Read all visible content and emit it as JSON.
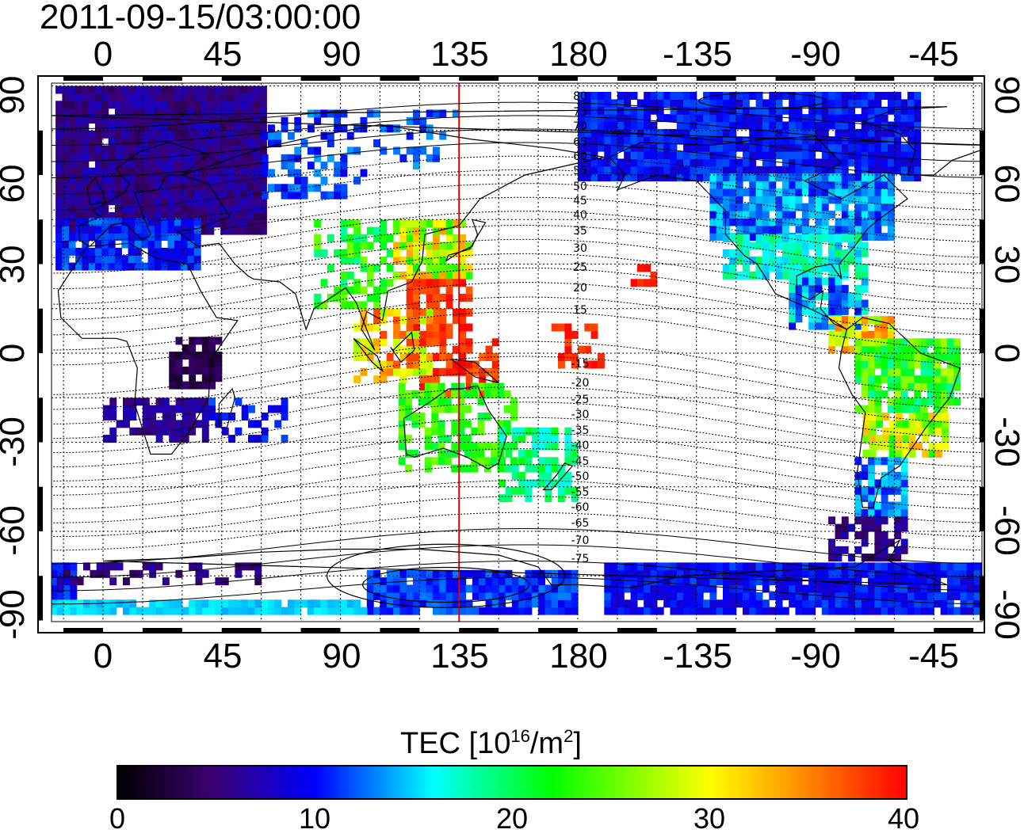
{
  "title": "2011-09-15/03:00:00",
  "map": {
    "lon_ticks_top": [
      "0",
      "45",
      "90",
      "135",
      "180",
      "-135",
      "-90",
      "-45"
    ],
    "lon_ticks_bottom": [
      "0",
      "45",
      "90",
      "135",
      "180",
      "-135",
      "-90",
      "-45"
    ],
    "lat_ticks_left": [
      "90",
      "60",
      "30",
      "0",
      "-30",
      "-60",
      "-90"
    ],
    "lat_ticks_right": [
      "90",
      "60",
      "30",
      "0",
      "-30",
      "-60",
      "-90"
    ],
    "lon_range": [
      -20,
      335
    ],
    "lat_range": [
      -90,
      90
    ],
    "grid": "dotted, every 15 degrees",
    "reference_meridian_lon": 135,
    "reference_meridian_color": "#e00000",
    "contour_labels": [
      "80",
      "75",
      "70",
      "65",
      "60",
      "55",
      "50",
      "45",
      "40",
      "35",
      "30",
      "25",
      "20",
      "15",
      "-15",
      "-20",
      "-25",
      "-30",
      "-35",
      "-40",
      "-45",
      "-50",
      "-55",
      "-60",
      "-65",
      "-70",
      "-75"
    ]
  },
  "colorbar": {
    "label": "TEC  [10",
    "label_exp": "16",
    "label_mid": "/m",
    "label_exp2": "2",
    "label_end": "]",
    "ticks": [
      "0",
      "10",
      "20",
      "30",
      "40"
    ],
    "range": [
      0,
      40
    ],
    "colors": [
      "#000000",
      "#3a0070",
      "#0000ff",
      "#00ffff",
      "#00ff00",
      "#ffff00",
      "#ff0000"
    ]
  }
}
